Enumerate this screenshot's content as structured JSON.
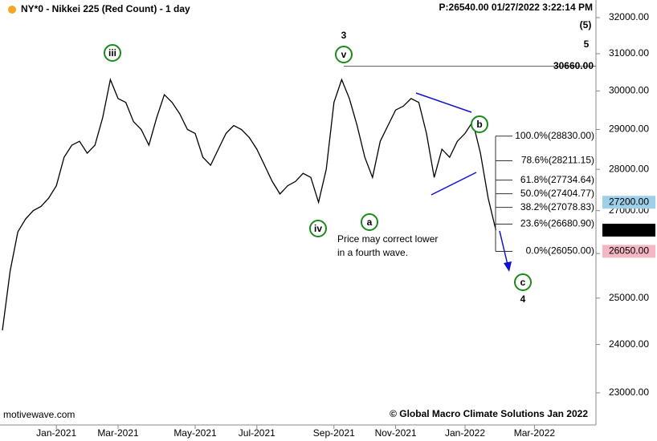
{
  "chart_data": {
    "type": "line",
    "title": "NY*0 - Nikkei 225 (Red Count) - 1 day",
    "status": "P:26540.00  01/27/2022 3:22:14 PM",
    "categories": [
      null,
      null,
      null,
      null,
      null,
      null,
      null,
      "Jan-2021",
      null,
      null,
      null,
      null,
      null,
      null,
      null,
      "Mar-2021",
      null,
      null,
      null,
      null,
      null,
      null,
      null,
      null,
      null,
      "May-2021",
      null,
      null,
      null,
      null,
      null,
      null,
      null,
      "Jul-2021",
      null,
      null,
      null,
      null,
      null,
      null,
      null,
      null,
      null,
      "Sep-2021",
      null,
      null,
      null,
      null,
      null,
      null,
      null,
      "Nov-2021",
      null,
      null,
      null,
      null,
      null,
      null,
      null,
      null,
      "Jan-2022",
      null,
      null,
      null,
      null,
      null,
      null,
      null,
      null,
      "Mar-2022",
      null,
      null,
      null,
      null,
      null,
      null,
      null
    ],
    "values": [
      24300,
      25600,
      26500,
      26800,
      27000,
      27100,
      27300,
      27600,
      28300,
      28600,
      28700,
      28400,
      28600,
      29300,
      30300,
      29800,
      29700,
      29200,
      29000,
      28600,
      29300,
      29900,
      29700,
      29400,
      29000,
      28900,
      28300,
      28100,
      28500,
      28900,
      29100,
      29000,
      28800,
      28500,
      28100,
      27700,
      27400,
      27600,
      27700,
      27900,
      27800,
      27200,
      28000,
      29700,
      30300,
      29800,
      29100,
      28300,
      27800,
      28700,
      29100,
      29500,
      29600,
      29800,
      29700,
      28900,
      27800,
      28500,
      28300,
      28700,
      28900,
      29200,
      28400,
      27300,
      26540,
      null,
      null,
      null,
      null,
      null,
      null,
      null,
      null,
      null,
      null,
      null,
      null
    ],
    "color": "#000000",
    "log_scale": true,
    "ylim": [
      22390,
      32500
    ],
    "yticks": [
      {
        "value": 23000,
        "label": "23000.00"
      },
      {
        "value": 24000,
        "label": "24000.00"
      },
      {
        "value": 25000,
        "label": "25000.00"
      },
      {
        "value": 26000,
        "label": "26000.00"
      },
      {
        "value": 27000,
        "label": "27000.00"
      },
      {
        "value": 28000,
        "label": "28000.00"
      },
      {
        "value": 29000,
        "label": "29000.00"
      },
      {
        "value": 30000,
        "label": "30000.00"
      },
      {
        "value": 31000,
        "label": "31000.00"
      },
      {
        "value": 32000,
        "label": "32000.00"
      }
    ],
    "levels": [
      {
        "value": 30660,
        "label": "30660.00"
      }
    ],
    "fib_levels": [
      {
        "value": 28830,
        "label": "100.0%(28830.00)"
      },
      {
        "value": 28211.15,
        "label": "78.6%(28211.15)"
      },
      {
        "value": 27734.64,
        "label": "61.8%(27734.64)"
      },
      {
        "value": 27404.77,
        "label": "50.0%(27404.77)"
      },
      {
        "value": 27078.83,
        "label": "38.2%(27078.83)"
      },
      {
        "value": 26680.9,
        "label": "23.6%(26680.90)"
      },
      {
        "value": 26050,
        "label": "0.0%(26050.00)"
      }
    ],
    "price_marks": [
      {
        "value": 27200,
        "label": "27200.00",
        "color": "#9fd0ea"
      },
      {
        "value": 26540,
        "label": "26540.00",
        "color": "#000000"
      },
      {
        "value": 26050,
        "label": "26050.00",
        "color": "#f5b8c2"
      }
    ],
    "wave_labels": [
      "iii",
      "iv",
      "v",
      "a",
      "b",
      "c"
    ],
    "degree_labels": [
      "3",
      "4",
      "5",
      "(5)"
    ],
    "annotation": [
      "Price may correct lower",
      "in a fourth wave."
    ],
    "copyright": "© Global Macro Climate Solutions Jan 2022",
    "watermark": "motivewave.com"
  }
}
